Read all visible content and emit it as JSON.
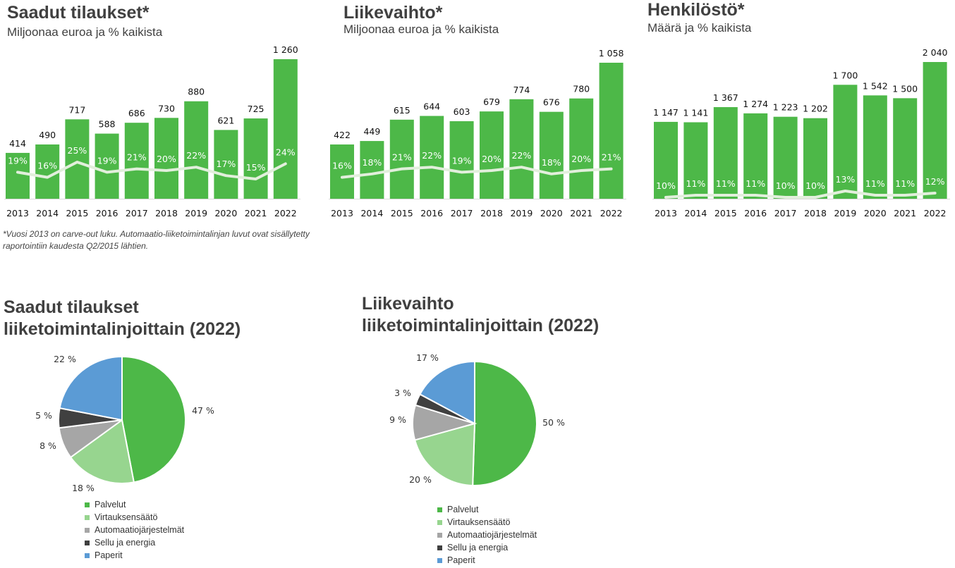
{
  "colors": {
    "bar": "#4db848",
    "line": "#e2efdc",
    "axis": "#d9d9d9",
    "pie": [
      "#4db848",
      "#97d58f",
      "#a6a6a6",
      "#404040",
      "#5b9bd5"
    ]
  },
  "chart_data": [
    {
      "type": "bar",
      "title": "Saadut tilaukset*",
      "subtitle": "Miljoonaa euroa ja % kaikista",
      "categories": [
        "2013",
        "2014",
        "2015",
        "2016",
        "2017",
        "2018",
        "2019",
        "2020",
        "2021",
        "2022"
      ],
      "values": [
        414,
        490,
        717,
        588,
        686,
        730,
        880,
        621,
        725,
        1260
      ],
      "value_labels": [
        "414",
        "490",
        "717",
        "588",
        "686",
        "730",
        "880",
        "621",
        "725",
        "1 260"
      ],
      "line_series": [
        19,
        16,
        25,
        19,
        21,
        20,
        22,
        17,
        15,
        24
      ],
      "line_labels": [
        "19%",
        "16%",
        "25%",
        "19%",
        "21%",
        "20%",
        "22%",
        "17%",
        "15%",
        "24%"
      ],
      "ylim": [
        0,
        1400
      ],
      "line_ylim": [
        0,
        100
      ],
      "footnote": "*Vuosi 2013 on carve-out luku. Automaatio-liiketoimintalinjan luvut ovat sisällytetty raportointiin kaudesta Q2/2015 lähtien."
    },
    {
      "type": "bar",
      "title": "Liikevaihto*",
      "subtitle": "Miljoonaa euroa ja % kaikista",
      "categories": [
        "2013",
        "2014",
        "2015",
        "2016",
        "2017",
        "2018",
        "2019",
        "2020",
        "2021",
        "2022"
      ],
      "values": [
        422,
        449,
        615,
        644,
        603,
        679,
        774,
        676,
        780,
        1058
      ],
      "value_labels": [
        "422",
        "449",
        "615",
        "644",
        "603",
        "679",
        "774",
        "676",
        "780",
        "1 058"
      ],
      "line_series": [
        16,
        18,
        21,
        22,
        19,
        20,
        22,
        18,
        20,
        21
      ],
      "line_labels": [
        "16%",
        "18%",
        "21%",
        "22%",
        "19%",
        "20%",
        "22%",
        "18%",
        "20%",
        "21%"
      ],
      "ylim": [
        0,
        1175
      ],
      "line_ylim": [
        0,
        100
      ]
    },
    {
      "type": "bar",
      "title": "Henkilöstö*",
      "subtitle": "Määrä ja % kaikista",
      "categories": [
        "2013",
        "2014",
        "2015",
        "2016",
        "2017",
        "2018",
        "2019",
        "2020",
        "2021",
        "2022"
      ],
      "values": [
        1147,
        1141,
        1367,
        1274,
        1223,
        1202,
        1700,
        1542,
        1500,
        2040
      ],
      "value_labels": [
        "1 147",
        "1 141",
        "1 367",
        "1 274",
        "1 223",
        "1 202",
        "1 700",
        "1 542",
        "1 500",
        "2 040"
      ],
      "line_series": [
        10,
        11,
        11,
        11,
        10,
        10,
        13,
        11,
        11,
        12
      ],
      "line_labels": [
        "10%",
        "11%",
        "11%",
        "11%",
        "10%",
        "10%",
        "13%",
        "11%",
        "11%",
        "12%"
      ],
      "ylim": [
        0,
        2280
      ],
      "line_ylim": [
        0,
        100
      ]
    },
    {
      "type": "pie",
      "title_lines": [
        "Saadut tilaukset",
        "liiketoimintalinjoittain (2022)"
      ],
      "labels": [
        "Palvelut",
        "Virtauksensäätö",
        "Automaatiojärjestelmät",
        "Sellu ja energia",
        "Paperit"
      ],
      "values": [
        47,
        18,
        8,
        5,
        22
      ],
      "value_labels": [
        "47 %",
        "18 %",
        "8 %",
        "5 %",
        "22 %"
      ]
    },
    {
      "type": "pie",
      "title_lines": [
        "Liikevaihto",
        "liiketoimintalinjoittain (2022)"
      ],
      "labels": [
        "Palvelut",
        "Virtauksensäätö",
        "Automaatiojärjestelmät",
        "Sellu ja energia",
        "Paperit"
      ],
      "values": [
        50,
        20,
        9,
        3,
        17
      ],
      "value_labels": [
        "50 %",
        "20 %",
        "9 %",
        "3 %",
        "17 %"
      ]
    }
  ]
}
